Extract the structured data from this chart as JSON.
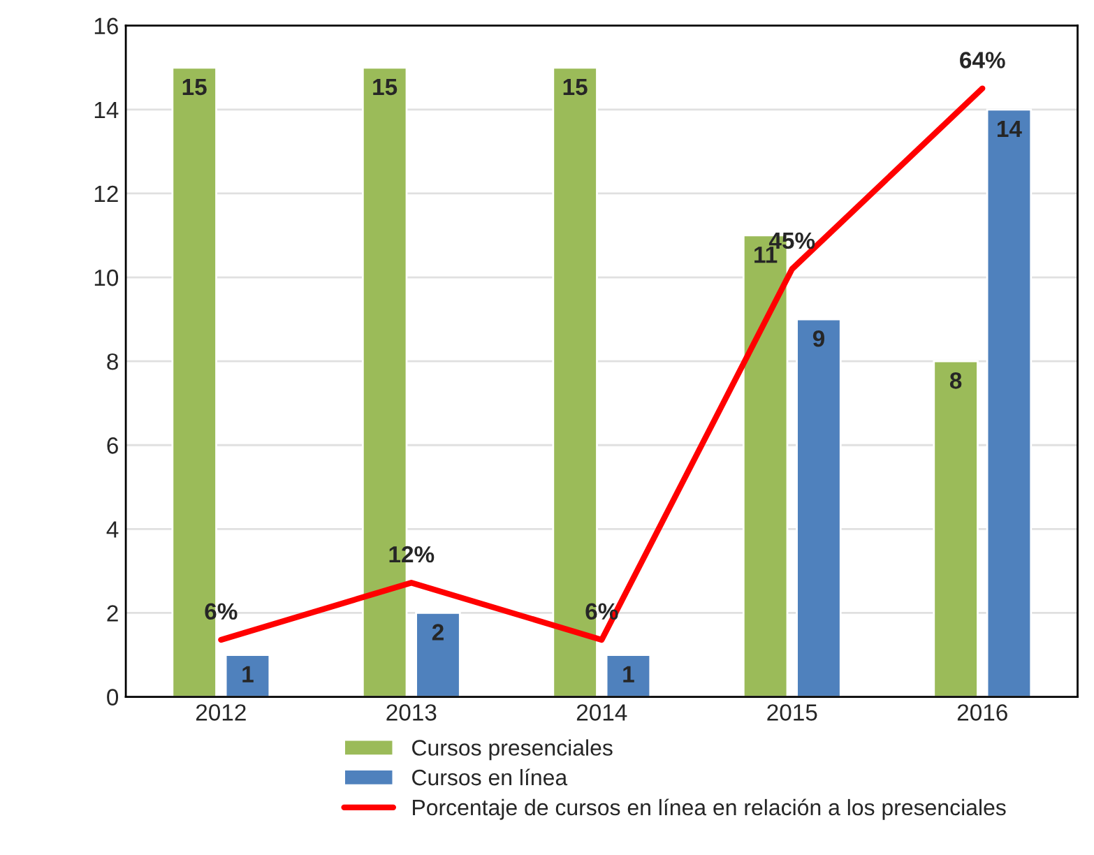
{
  "chart_data": {
    "type": "bar",
    "categories": [
      "2012",
      "2013",
      "2014",
      "2015",
      "2016"
    ],
    "series": [
      {
        "name": "Cursos presenciales",
        "color": "#9bbb59",
        "values": [
          15,
          15,
          15,
          11,
          8
        ]
      },
      {
        "name": "Cursos en línea",
        "color": "#4f81bd",
        "values": [
          1,
          2,
          1,
          9,
          14
        ]
      },
      {
        "name": "Porcentaje de cursos en línea en relación a los presenciales",
        "type": "line",
        "axis": "y2",
        "color": "#ff0000",
        "values": [
          6,
          12,
          6,
          45,
          64
        ],
        "value_labels": [
          "6%",
          "12%",
          "6%",
          "45%",
          "64%"
        ]
      }
    ],
    "ylim": [
      0,
      16
    ],
    "yticks": [
      0,
      2,
      4,
      6,
      8,
      10,
      12,
      14,
      16
    ],
    "y2lim": [
      0,
      70.6
    ],
    "data_labels": true,
    "grid": "y",
    "legend": "bottom",
    "marker": "none",
    "line_style": "solid"
  }
}
